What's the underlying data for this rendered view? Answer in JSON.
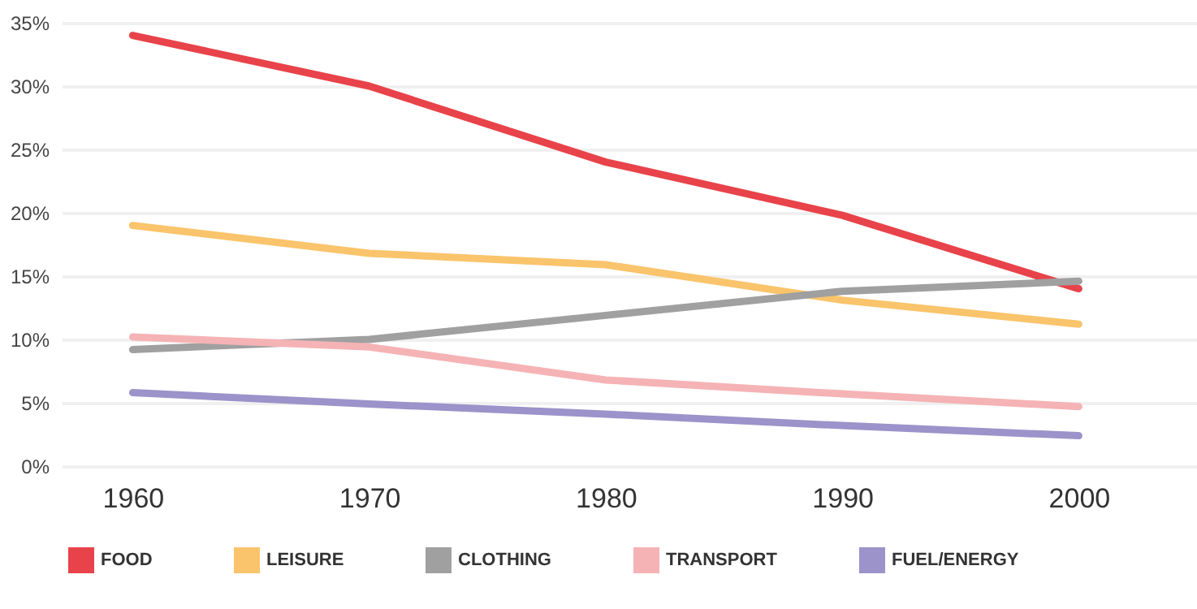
{
  "chart_data": {
    "type": "line",
    "x": [
      1960,
      1970,
      1980,
      1990,
      2000
    ],
    "xlim": [
      1957,
      2005
    ],
    "xticks": [
      1960,
      1970,
      1980,
      1990,
      2000
    ],
    "ylim": [
      0,
      35
    ],
    "yticks": [
      {
        "value": 0,
        "label": "0%"
      },
      {
        "value": 5,
        "label": "5%"
      },
      {
        "value": 10,
        "label": "10%"
      },
      {
        "value": 15,
        "label": "15%"
      },
      {
        "value": 20,
        "label": "20%"
      },
      {
        "value": 25,
        "label": "25%"
      },
      {
        "value": 30,
        "label": "30%"
      },
      {
        "value": 35,
        "label": "35%"
      }
    ],
    "grid": "y",
    "legend": "bottom",
    "marker": "none",
    "line_style": "solid",
    "series": [
      {
        "name": "FOOD",
        "color": "#e8434a",
        "values": [
          34,
          30,
          24,
          19.8,
          14
        ]
      },
      {
        "name": "LEISURE",
        "color": "#f9c46b",
        "values": [
          19,
          16.8,
          15.9,
          13.1,
          11.2
        ]
      },
      {
        "name": "CLOTHING",
        "color": "#a0a0a0",
        "values": [
          9.2,
          10,
          11.9,
          13.8,
          14.6
        ]
      },
      {
        "name": "TRANSPORT",
        "color": "#f5b3b5",
        "values": [
          10.2,
          9.4,
          6.8,
          5.7,
          4.7
        ]
      },
      {
        "name": "FUEL/ENERGY",
        "color": "#9b93c9",
        "values": [
          5.8,
          4.9,
          4.1,
          3.2,
          2.4
        ]
      }
    ]
  }
}
